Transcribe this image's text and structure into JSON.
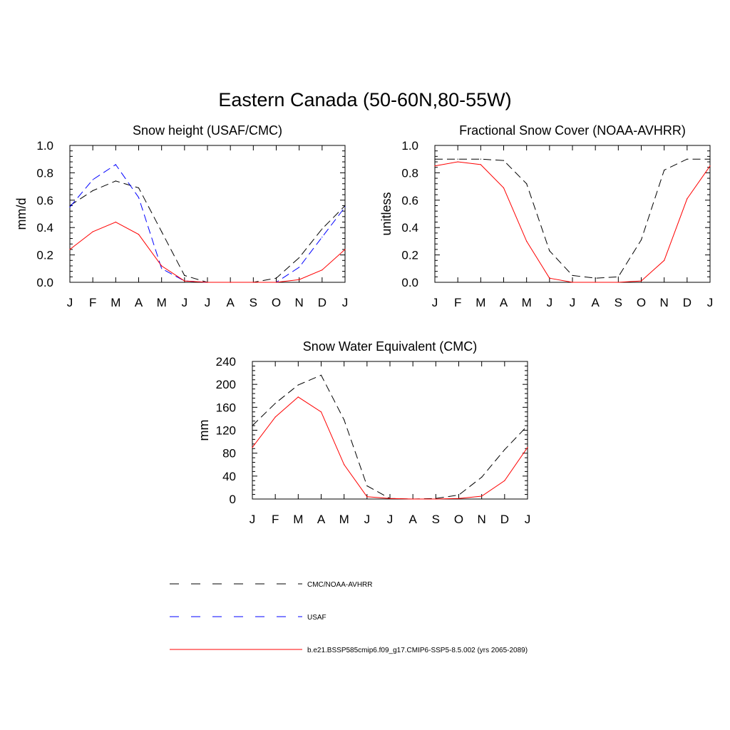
{
  "figure": {
    "title": "Eastern Canada (50-60N,80-55W)"
  },
  "colors": {
    "obs": "#000000",
    "usaf": "#0000ff",
    "model": "#ff0000"
  },
  "legend": [
    {
      "label": "CMC/NOAA-AVHRR",
      "color": "#000000",
      "style": "dashed",
      "series_key": "obs"
    },
    {
      "label": "USAF",
      "color": "#0000ff",
      "style": "dashed",
      "series_key": "usaf"
    },
    {
      "label": "b.e21.BSSP585cmip6.f09_g17.CMIP6-SSP5-8.5.002 (yrs 2065-2089)",
      "color": "#ff0000",
      "style": "solid",
      "series_key": "model"
    }
  ],
  "chart_data": [
    {
      "type": "line",
      "title": "Snow height (USAF/CMC)",
      "ylabel": "mm/d",
      "xlabel": "",
      "categories": [
        "J",
        "F",
        "M",
        "A",
        "M",
        "J",
        "J",
        "A",
        "S",
        "O",
        "N",
        "D",
        "J"
      ],
      "ylim": [
        0,
        1.0
      ],
      "yticks": [
        "0.0",
        "0.2",
        "0.4",
        "0.6",
        "0.8",
        "1.0"
      ],
      "grid": false,
      "series": [
        {
          "name": "CMC/NOAA-AVHRR",
          "key": "obs",
          "style": "dashed",
          "values": [
            0.56,
            0.67,
            0.74,
            0.69,
            0.37,
            0.05,
            0.0,
            0.0,
            0.0,
            0.03,
            0.18,
            0.39,
            0.56
          ]
        },
        {
          "name": "USAF",
          "key": "usaf",
          "style": "dashed",
          "values": [
            0.55,
            0.75,
            0.86,
            0.62,
            0.1,
            0.01,
            0.0,
            0.0,
            0.0,
            0.0,
            0.11,
            0.33,
            0.55
          ]
        },
        {
          "name": "b.e21.BSSP585cmip6.f09_g17.CMIP6-SSP5-8.5.002 (yrs 2065-2089)",
          "key": "model",
          "style": "solid",
          "values": [
            0.24,
            0.37,
            0.44,
            0.35,
            0.12,
            0.01,
            0.0,
            0.0,
            0.0,
            0.0,
            0.02,
            0.09,
            0.24
          ]
        }
      ]
    },
    {
      "type": "line",
      "title": "Fractional Snow Cover (NOAA-AVHRR)",
      "ylabel": "unitless",
      "xlabel": "",
      "categories": [
        "J",
        "F",
        "M",
        "A",
        "M",
        "J",
        "J",
        "A",
        "S",
        "O",
        "N",
        "D",
        "J"
      ],
      "ylim": [
        0,
        1.0
      ],
      "yticks": [
        "0.0",
        "0.2",
        "0.4",
        "0.6",
        "0.8",
        "1.0"
      ],
      "grid": false,
      "series": [
        {
          "name": "CMC/NOAA-AVHRR",
          "key": "obs",
          "style": "dashed",
          "values": [
            0.9,
            0.9,
            0.9,
            0.89,
            0.72,
            0.23,
            0.05,
            0.03,
            0.04,
            0.31,
            0.82,
            0.9,
            0.9
          ]
        },
        {
          "name": "b.e21.BSSP585cmip6.f09_g17.CMIP6-SSP5-8.5.002 (yrs 2065-2089)",
          "key": "model",
          "style": "solid",
          "values": [
            0.85,
            0.88,
            0.86,
            0.69,
            0.3,
            0.03,
            0.0,
            0.0,
            0.0,
            0.01,
            0.16,
            0.61,
            0.85
          ]
        }
      ]
    },
    {
      "type": "line",
      "title": "Snow Water Equivalent (CMC)",
      "ylabel": "mm",
      "xlabel": "",
      "categories": [
        "J",
        "F",
        "M",
        "A",
        "M",
        "J",
        "J",
        "A",
        "S",
        "O",
        "N",
        "D",
        "J"
      ],
      "ylim": [
        0,
        240
      ],
      "yticks": [
        "0",
        "40",
        "80",
        "120",
        "160",
        "200",
        "240"
      ],
      "grid": false,
      "series": [
        {
          "name": "CMC/NOAA-AVHRR",
          "key": "obs",
          "style": "dashed",
          "values": [
            128,
            167,
            199,
            216,
            138,
            23,
            1,
            0,
            1,
            7,
            38,
            86,
            128
          ]
        },
        {
          "name": "b.e21.BSSP585cmip6.f09_g17.CMIP6-SSP5-8.5.002 (yrs 2065-2089)",
          "key": "model",
          "style": "solid",
          "values": [
            90,
            143,
            178,
            152,
            60,
            4,
            1,
            0,
            0,
            1,
            5,
            32,
            90
          ]
        }
      ]
    }
  ]
}
